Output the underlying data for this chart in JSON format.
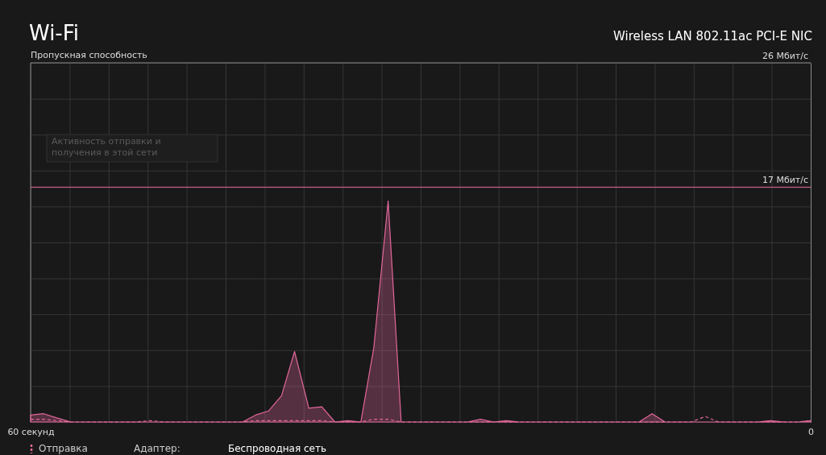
{
  "chart_data": {
    "type": "area",
    "title": "Wi-Fi",
    "subtitle": "Wireless LAN 802.11ac PCI-E NIC",
    "ylabel": "Пропускная способность",
    "annotations": [
      "Активность отправки и получения в этой сети",
      "Адаптер:",
      "Беспроводная сеть"
    ],
    "x": [
      60,
      59,
      58,
      56.9,
      55.9,
      54.9,
      53.9,
      52.9,
      51.9,
      50.8,
      49.8,
      48.8,
      47.8,
      46.8,
      45.8,
      44.7,
      43.7,
      42.7,
      41.7,
      40.7,
      39.7,
      38.6,
      37.6,
      36.6,
      35.6,
      34.6,
      33.6,
      32.5,
      31.5,
      30.5,
      29.5,
      28.5,
      27.5,
      26.4,
      25.4,
      24.4,
      23.4,
      22.4,
      21.4,
      20.3,
      19.3,
      18.3,
      17.3,
      16.3,
      15.3,
      14.2,
      13.2,
      12.2,
      11.2,
      10.2,
      9.2,
      8.1,
      7.1,
      6.1,
      5.1,
      4.1,
      3.1,
      2,
      1,
      0
    ],
    "series": [
      {
        "type": "area",
        "color": "#e2679a",
        "line_style": "solid",
        "values": [
          0.5,
          0.6,
          0.3,
          0,
          0,
          0,
          0,
          0,
          0,
          0,
          0,
          0,
          0,
          0,
          0,
          0,
          0,
          0.5,
          0.8,
          1.9,
          5.1,
          1,
          1.1,
          0,
          0.1,
          0,
          5.4,
          16,
          0,
          0,
          0,
          0,
          0,
          0,
          0.2,
          0,
          0.1,
          0,
          0,
          0,
          0,
          0,
          0,
          0,
          0,
          0,
          0,
          0.6,
          0,
          0,
          0,
          0,
          0,
          0,
          0,
          0,
          0.1,
          0,
          0,
          0.1
        ]
      },
      {
        "type": "line",
        "name": "Отправка",
        "color": "#e2679a",
        "line_style": "dashed",
        "values": [
          0.2,
          0.2,
          0.1,
          0,
          0,
          0,
          0,
          0,
          0,
          0.1,
          0,
          0,
          0,
          0,
          0,
          0,
          0,
          0.1,
          0.1,
          0.1,
          0.1,
          0.1,
          0.1,
          0,
          0,
          0,
          0.2,
          0.2,
          0,
          0,
          0,
          0,
          0,
          0,
          0,
          0,
          0,
          0,
          0,
          0,
          0,
          0,
          0,
          0,
          0,
          0,
          0,
          0,
          0,
          0,
          0,
          0.4,
          0,
          0,
          0,
          0,
          0,
          0,
          0,
          0.1
        ]
      }
    ],
    "xlim": [
      60,
      0
    ],
    "xticks": [
      {
        "value": 60,
        "label": "60 секунд"
      },
      {
        "value": 57,
        "label": null
      },
      {
        "value": 54,
        "label": null
      },
      {
        "value": 51,
        "label": null
      },
      {
        "value": 48,
        "label": null
      },
      {
        "value": 45,
        "label": null
      },
      {
        "value": 42,
        "label": null
      },
      {
        "value": 39,
        "label": null
      },
      {
        "value": 36,
        "label": null
      },
      {
        "value": 33,
        "label": null
      },
      {
        "value": 30,
        "label": null
      },
      {
        "value": 27,
        "label": null
      },
      {
        "value": 24,
        "label": null
      },
      {
        "value": 21,
        "label": null
      },
      {
        "value": 18,
        "label": null
      },
      {
        "value": 15,
        "label": null
      },
      {
        "value": 12,
        "label": null
      },
      {
        "value": 9,
        "label": null
      },
      {
        "value": 6,
        "label": null
      },
      {
        "value": 3,
        "label": null
      },
      {
        "value": 0,
        "label": "0"
      }
    ],
    "ylim": [
      0,
      26
    ],
    "yticks": [
      {
        "value": 0,
        "label": null
      },
      {
        "value": 2.6,
        "label": null
      },
      {
        "value": 5.2,
        "label": null
      },
      {
        "value": 7.8,
        "label": null
      },
      {
        "value": 10.4,
        "label": null
      },
      {
        "value": 13,
        "label": null
      },
      {
        "value": 15.6,
        "label": null
      },
      {
        "value": 17,
        "label": "17 Мбит/с"
      },
      {
        "value": 18.2,
        "label": null
      },
      {
        "value": 20.8,
        "label": null
      },
      {
        "value": 23.4,
        "label": null
      },
      {
        "value": 26,
        "label": "26 Мбит/с"
      }
    ],
    "ref_lines": [
      {
        "axis": "y",
        "value": 17,
        "color": "#e2679a"
      }
    ],
    "grid": true,
    "legend": "bottom left"
  }
}
